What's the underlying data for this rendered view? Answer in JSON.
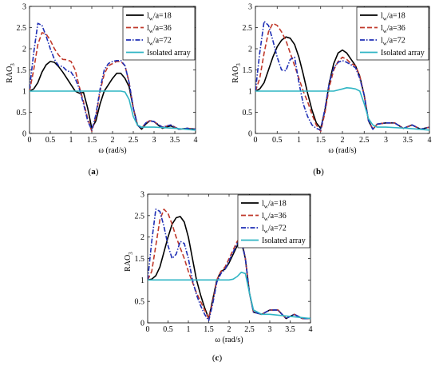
{
  "chart_data": [
    {
      "type": "line",
      "caption": {
        "pre": "(",
        "letter": "a",
        "post": ")"
      },
      "xlabel": "ω (rad/s)",
      "ylabel": {
        "main": "RAO",
        "sub": "3"
      },
      "xlim": [
        0,
        4
      ],
      "ylim": [
        0,
        3
      ],
      "xticks": [
        "0",
        "0.5",
        "1",
        "1.5",
        "2",
        "2.5",
        "3",
        "3.5",
        "4"
      ],
      "yticks": [
        "0",
        "0.5",
        "1",
        "1.5",
        "2",
        "2.5",
        "3"
      ],
      "grid": false,
      "legend_position": "top-right",
      "series": [
        {
          "name": {
            "pre": "l",
            "sub": "w",
            "post": "/a=18"
          },
          "color": "#000000",
          "dash": "solid",
          "x": [
            0,
            0.1,
            0.2,
            0.3,
            0.4,
            0.5,
            0.6,
            0.7,
            0.8,
            0.9,
            1.0,
            1.1,
            1.2,
            1.3,
            1.4,
            1.5,
            1.6,
            1.7,
            1.8,
            1.9,
            2.0,
            2.1,
            2.2,
            2.3,
            2.4,
            2.5,
            2.6,
            2.7,
            2.8,
            2.9,
            3.0,
            3.2,
            3.4,
            3.6,
            3.8,
            4.0
          ],
          "y": [
            1.0,
            1.05,
            1.2,
            1.45,
            1.62,
            1.7,
            1.68,
            1.58,
            1.45,
            1.3,
            1.15,
            1.0,
            0.95,
            0.97,
            0.6,
            0.12,
            0.3,
            0.7,
            1.0,
            1.15,
            1.3,
            1.42,
            1.42,
            1.3,
            1.1,
            0.6,
            0.2,
            0.1,
            0.22,
            0.3,
            0.28,
            0.12,
            0.18,
            0.1,
            0.12,
            0.1
          ]
        },
        {
          "name": {
            "pre": "l",
            "sub": "w",
            "post": "/a=36"
          },
          "color": "#c0392b",
          "dash": "dashed",
          "x": [
            0,
            0.1,
            0.2,
            0.3,
            0.4,
            0.5,
            0.6,
            0.7,
            0.8,
            0.9,
            1.0,
            1.1,
            1.2,
            1.3,
            1.4,
            1.5,
            1.6,
            1.7,
            1.8,
            1.9,
            2.0,
            2.1,
            2.2,
            2.3,
            2.4,
            2.5,
            2.6,
            2.7,
            2.8,
            2.9,
            3.0,
            3.2,
            3.4,
            3.6,
            3.8,
            4.0
          ],
          "y": [
            1.0,
            1.5,
            2.1,
            2.38,
            2.35,
            2.2,
            2.0,
            1.85,
            1.75,
            1.74,
            1.7,
            1.5,
            1.1,
            0.75,
            0.35,
            0.05,
            0.4,
            1.0,
            1.4,
            1.6,
            1.65,
            1.7,
            1.7,
            1.6,
            1.2,
            0.6,
            0.2,
            0.12,
            0.25,
            0.3,
            0.28,
            0.15,
            0.2,
            0.1,
            0.12,
            0.1
          ]
        },
        {
          "name": {
            "pre": "l",
            "sub": "w",
            "post": "/a=72"
          },
          "color": "#1f2fb5",
          "dash": "dashdot",
          "x": [
            0,
            0.1,
            0.2,
            0.3,
            0.4,
            0.5,
            0.6,
            0.7,
            0.8,
            0.9,
            1.0,
            1.1,
            1.2,
            1.3,
            1.4,
            1.5,
            1.6,
            1.7,
            1.8,
            1.9,
            2.0,
            2.1,
            2.2,
            2.3,
            2.4,
            2.5,
            2.6,
            2.7,
            2.8,
            2.9,
            3.0,
            3.2,
            3.4,
            3.6,
            3.8,
            4.0
          ],
          "y": [
            1.05,
            1.9,
            2.6,
            2.55,
            2.3,
            2.0,
            1.75,
            1.6,
            1.58,
            1.48,
            1.45,
            1.3,
            1.05,
            0.7,
            0.3,
            0.08,
            0.45,
            1.05,
            1.5,
            1.65,
            1.7,
            1.72,
            1.72,
            1.6,
            1.2,
            0.6,
            0.2,
            0.12,
            0.25,
            0.3,
            0.28,
            0.15,
            0.2,
            0.1,
            0.12,
            0.1
          ]
        },
        {
          "name": {
            "pre": "Isolated array",
            "sub": "",
            "post": ""
          },
          "color": "#2fb5c4",
          "dash": "solid",
          "x": [
            0,
            0.5,
            1.0,
            1.5,
            2.0,
            2.2,
            2.3,
            2.4,
            2.5,
            2.6,
            2.7,
            2.8,
            3.0,
            3.5,
            4.0
          ],
          "y": [
            1.0,
            1.0,
            1.0,
            1.0,
            1.0,
            1.0,
            0.98,
            0.8,
            0.4,
            0.2,
            0.15,
            0.15,
            0.15,
            0.12,
            0.08
          ]
        }
      ]
    },
    {
      "type": "line",
      "caption": {
        "pre": "(",
        "letter": "b",
        "post": ")"
      },
      "xlabel": "ω (rad/s)",
      "ylabel": {
        "main": "RAO",
        "sub": "3"
      },
      "xlim": [
        0,
        4
      ],
      "ylim": [
        0,
        3
      ],
      "xticks": [
        "0",
        "0.5",
        "1",
        "1.5",
        "2",
        "2.5",
        "3",
        "3.5",
        "4"
      ],
      "yticks": [
        "0",
        "0.5",
        "1",
        "1.5",
        "2",
        "2.5",
        "3"
      ],
      "grid": false,
      "legend_position": "top-right",
      "series": [
        {
          "name": {
            "pre": "l",
            "sub": "w",
            "post": "/a=18"
          },
          "color": "#000000",
          "dash": "solid",
          "x": [
            0,
            0.1,
            0.2,
            0.3,
            0.4,
            0.5,
            0.6,
            0.7,
            0.8,
            0.9,
            1.0,
            1.1,
            1.2,
            1.3,
            1.4,
            1.5,
            1.6,
            1.7,
            1.8,
            1.9,
            2.0,
            2.1,
            2.2,
            2.3,
            2.4,
            2.5,
            2.6,
            2.7,
            2.8,
            3.0,
            3.2,
            3.4,
            3.6,
            3.8,
            4.0
          ],
          "y": [
            1.0,
            1.05,
            1.2,
            1.5,
            1.8,
            2.05,
            2.2,
            2.28,
            2.25,
            2.1,
            1.8,
            1.4,
            0.95,
            0.55,
            0.25,
            0.12,
            0.55,
            1.2,
            1.65,
            1.9,
            1.97,
            1.9,
            1.75,
            1.6,
            1.35,
            0.9,
            0.3,
            0.1,
            0.22,
            0.25,
            0.25,
            0.12,
            0.2,
            0.1,
            0.15
          ]
        },
        {
          "name": {
            "pre": "l",
            "sub": "w",
            "post": "/a=36"
          },
          "color": "#c0392b",
          "dash": "dashed",
          "x": [
            0,
            0.1,
            0.2,
            0.3,
            0.4,
            0.5,
            0.6,
            0.7,
            0.8,
            0.9,
            1.0,
            1.1,
            1.2,
            1.3,
            1.4,
            1.5,
            1.6,
            1.7,
            1.8,
            1.9,
            2.0,
            2.1,
            2.2,
            2.3,
            2.4,
            2.5,
            2.6,
            2.7,
            2.8,
            3.0,
            3.2,
            3.4,
            3.6,
            3.8,
            4.0
          ],
          "y": [
            1.0,
            1.3,
            1.9,
            2.4,
            2.6,
            2.55,
            2.4,
            2.2,
            1.9,
            1.6,
            1.3,
            1.0,
            0.75,
            0.45,
            0.2,
            0.05,
            0.5,
            1.1,
            1.5,
            1.7,
            1.8,
            1.75,
            1.65,
            1.6,
            1.35,
            0.9,
            0.3,
            0.1,
            0.22,
            0.25,
            0.25,
            0.12,
            0.2,
            0.1,
            0.15
          ]
        },
        {
          "name": {
            "pre": "l",
            "sub": "w",
            "post": "/a=72"
          },
          "color": "#1f2fb5",
          "dash": "dashdot",
          "x": [
            0,
            0.1,
            0.2,
            0.3,
            0.4,
            0.5,
            0.6,
            0.7,
            0.8,
            0.9,
            1.0,
            1.1,
            1.2,
            1.3,
            1.4,
            1.5,
            1.6,
            1.7,
            1.8,
            1.9,
            2.0,
            2.1,
            2.2,
            2.3,
            2.4,
            2.5,
            2.6,
            2.7,
            2.8,
            3.0,
            3.2,
            3.4,
            3.6,
            3.8,
            4.0
          ],
          "y": [
            1.0,
            1.9,
            2.65,
            2.55,
            2.2,
            1.8,
            1.5,
            1.48,
            1.75,
            1.8,
            1.2,
            0.7,
            0.4,
            0.2,
            0.12,
            0.08,
            0.6,
            1.2,
            1.55,
            1.68,
            1.72,
            1.68,
            1.62,
            1.55,
            1.3,
            0.9,
            0.3,
            0.1,
            0.22,
            0.25,
            0.25,
            0.12,
            0.2,
            0.1,
            0.15
          ]
        },
        {
          "name": {
            "pre": "Isolated array",
            "sub": "",
            "post": ""
          },
          "color": "#2fb5c4",
          "dash": "solid",
          "x": [
            0,
            0.5,
            1.0,
            1.5,
            1.8,
            2.0,
            2.1,
            2.2,
            2.3,
            2.4,
            2.5,
            2.6,
            2.7,
            2.8,
            3.0,
            3.5,
            4.0
          ],
          "y": [
            1.0,
            1.0,
            1.0,
            1.0,
            1.0,
            1.05,
            1.08,
            1.07,
            1.05,
            1.0,
            0.7,
            0.35,
            0.2,
            0.15,
            0.15,
            0.12,
            0.08
          ]
        }
      ]
    },
    {
      "type": "line",
      "caption": {
        "pre": "(",
        "letter": "c",
        "post": ")"
      },
      "xlabel": "ω (rad/s)",
      "ylabel": {
        "main": "RAO",
        "sub": "3"
      },
      "xlim": [
        0,
        4
      ],
      "ylim": [
        0,
        3
      ],
      "xticks": [
        "0",
        "0.5",
        "1",
        "1.5",
        "2",
        "2.5",
        "3",
        "3.5",
        "4"
      ],
      "yticks": [
        "0",
        "0.5",
        "1",
        "1.5",
        "2",
        "2.5",
        "3"
      ],
      "grid": false,
      "legend_position": "top-right",
      "series": [
        {
          "name": {
            "pre": "l",
            "sub": "w",
            "post": "/a=18"
          },
          "color": "#000000",
          "dash": "solid",
          "x": [
            0,
            0.1,
            0.2,
            0.3,
            0.4,
            0.5,
            0.6,
            0.7,
            0.8,
            0.9,
            1.0,
            1.1,
            1.2,
            1.3,
            1.4,
            1.5,
            1.6,
            1.7,
            1.8,
            1.9,
            2.0,
            2.1,
            2.2,
            2.3,
            2.4,
            2.5,
            2.6,
            2.8,
            3.0,
            3.2,
            3.4,
            3.6,
            3.8,
            4.0
          ],
          "y": [
            1.0,
            1.02,
            1.1,
            1.3,
            1.65,
            2.0,
            2.3,
            2.45,
            2.48,
            2.35,
            2.0,
            1.5,
            1.0,
            0.65,
            0.35,
            0.1,
            0.55,
            1.0,
            1.2,
            1.25,
            1.4,
            1.6,
            1.8,
            1.9,
            1.5,
            0.7,
            0.25,
            0.2,
            0.3,
            0.3,
            0.1,
            0.2,
            0.1,
            0.1
          ]
        },
        {
          "name": {
            "pre": "l",
            "sub": "w",
            "post": "/a=36"
          },
          "color": "#c0392b",
          "dash": "dashed",
          "x": [
            0,
            0.1,
            0.2,
            0.3,
            0.4,
            0.5,
            0.6,
            0.7,
            0.8,
            0.9,
            1.0,
            1.1,
            1.2,
            1.3,
            1.4,
            1.5,
            1.6,
            1.7,
            1.8,
            1.9,
            2.0,
            2.1,
            2.2,
            2.3,
            2.4,
            2.5,
            2.6,
            2.8,
            3.0,
            3.2,
            3.4,
            3.6,
            3.8,
            4.0
          ],
          "y": [
            1.0,
            1.2,
            1.8,
            2.4,
            2.65,
            2.55,
            2.3,
            2.0,
            1.75,
            1.5,
            1.2,
            0.95,
            0.7,
            0.5,
            0.3,
            0.1,
            0.5,
            1.0,
            1.2,
            1.3,
            1.5,
            1.7,
            1.9,
            2.0,
            1.5,
            0.7,
            0.25,
            0.2,
            0.3,
            0.3,
            0.1,
            0.2,
            0.1,
            0.1
          ]
        },
        {
          "name": {
            "pre": "l",
            "sub": "w",
            "post": "/a=72"
          },
          "color": "#1f2fb5",
          "dash": "dashdot",
          "x": [
            0,
            0.1,
            0.2,
            0.3,
            0.4,
            0.5,
            0.6,
            0.7,
            0.8,
            0.9,
            1.0,
            1.1,
            1.2,
            1.3,
            1.4,
            1.5,
            1.6,
            1.7,
            1.8,
            1.9,
            2.0,
            2.1,
            2.2,
            2.3,
            2.4,
            2.5,
            2.6,
            2.8,
            3.0,
            3.2,
            3.4,
            3.6,
            3.8,
            4.0
          ],
          "y": [
            1.0,
            1.9,
            2.65,
            2.6,
            2.25,
            1.8,
            1.5,
            1.6,
            1.9,
            1.85,
            1.5,
            1.0,
            0.65,
            0.4,
            0.2,
            0.05,
            0.45,
            0.95,
            1.15,
            1.25,
            1.45,
            1.65,
            1.85,
            1.95,
            1.5,
            0.7,
            0.25,
            0.2,
            0.3,
            0.3,
            0.1,
            0.2,
            0.1,
            0.1
          ]
        },
        {
          "name": {
            "pre": "Isolated array",
            "sub": "",
            "post": ""
          },
          "color": "#2fb5c4",
          "dash": "solid",
          "x": [
            0,
            0.5,
            1.0,
            1.5,
            2.0,
            2.1,
            2.2,
            2.3,
            2.4,
            2.5,
            2.6,
            2.7,
            2.8,
            3.0,
            3.5,
            4.0
          ],
          "y": [
            1.0,
            1.0,
            1.0,
            1.0,
            1.0,
            1.02,
            1.08,
            1.18,
            1.15,
            0.7,
            0.3,
            0.25,
            0.2,
            0.2,
            0.15,
            0.1
          ]
        }
      ]
    }
  ]
}
